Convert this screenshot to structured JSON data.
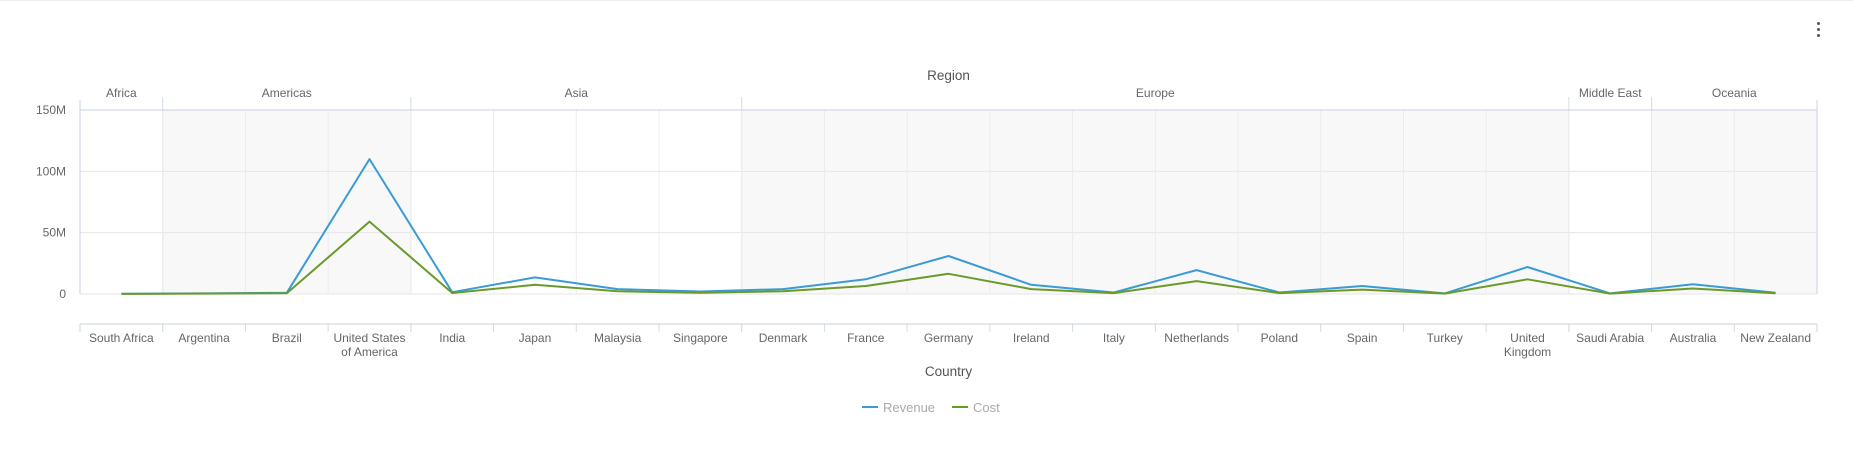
{
  "menu": {
    "icon": "more-vertical-icon"
  },
  "chart_data": {
    "type": "line",
    "title": "",
    "group_axis_title": "Region",
    "xlabel": "Country",
    "ylabel": "",
    "ylim": [
      0,
      150000000
    ],
    "y_ticks": [
      {
        "value": 0,
        "label": "0"
      },
      {
        "value": 50000000,
        "label": "50M"
      },
      {
        "value": 100000000,
        "label": "100M"
      },
      {
        "value": 150000000,
        "label": "150M"
      }
    ],
    "grid": true,
    "legend_position": "bottom-center",
    "groups": [
      {
        "name": "Africa",
        "count": 1
      },
      {
        "name": "Americas",
        "count": 3
      },
      {
        "name": "Asia",
        "count": 4
      },
      {
        "name": "Europe",
        "count": 10
      },
      {
        "name": "Middle East",
        "count": 1
      },
      {
        "name": "Oceania",
        "count": 2
      }
    ],
    "categories": [
      "South Africa",
      "Argentina",
      "Brazil",
      "United States of America",
      "India",
      "Japan",
      "Malaysia",
      "Singapore",
      "Denmark",
      "France",
      "Germany",
      "Ireland",
      "Italy",
      "Netherlands",
      "Poland",
      "Spain",
      "Turkey",
      "United Kingdom",
      "Saudi Arabia",
      "Australia",
      "New Zealand"
    ],
    "series": [
      {
        "name": "Revenue",
        "color": "#3a9bd5",
        "values": [
          200000,
          500000,
          1000000,
          110000000,
          1500000,
          13500000,
          4000000,
          2000000,
          4000000,
          12000000,
          31000000,
          7500000,
          1200000,
          19500000,
          1200000,
          6500000,
          500000,
          22000000,
          500000,
          8000000,
          1000000
        ]
      },
      {
        "name": "Cost",
        "color": "#6a9a2a",
        "values": [
          100000,
          300000,
          600000,
          59000000,
          800000,
          7500000,
          2200000,
          1100000,
          2200000,
          6500000,
          16500000,
          4000000,
          700000,
          10500000,
          700000,
          3600000,
          300000,
          12000000,
          300000,
          4500000,
          600000
        ]
      }
    ]
  }
}
